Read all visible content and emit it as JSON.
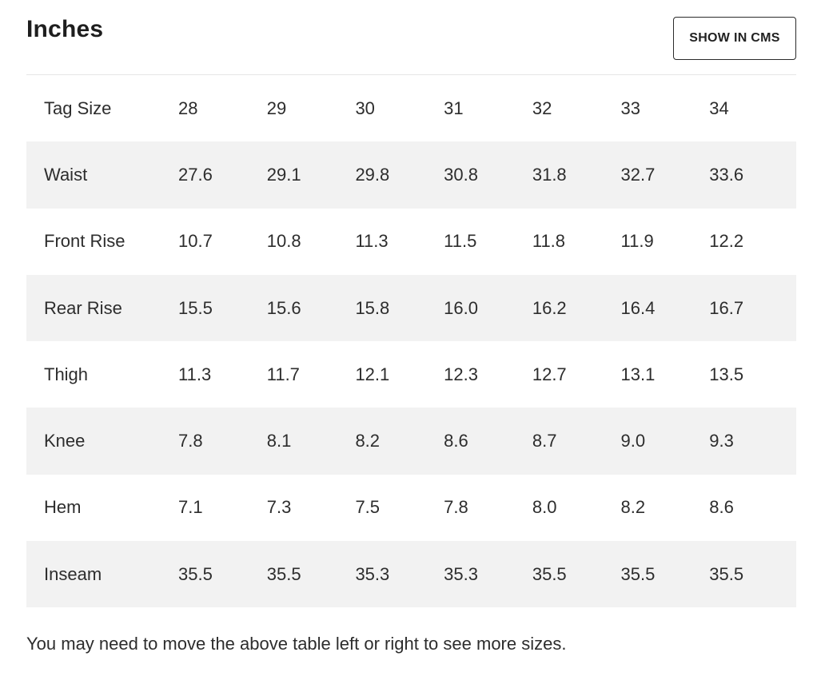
{
  "header": {
    "title": "Inches",
    "cms_button_label": "SHOW IN CMS"
  },
  "table": {
    "rows": [
      {
        "label": "Tag Size",
        "values": [
          "28",
          "29",
          "30",
          "31",
          "32",
          "33",
          "34"
        ]
      },
      {
        "label": "Waist",
        "values": [
          "27.6",
          "29.1",
          "29.8",
          "30.8",
          "31.8",
          "32.7",
          "33.6"
        ]
      },
      {
        "label": "Front Rise",
        "values": [
          "10.7",
          "10.8",
          "11.3",
          "11.5",
          "11.8",
          "11.9",
          "12.2"
        ]
      },
      {
        "label": "Rear Rise",
        "values": [
          "15.5",
          "15.6",
          "15.8",
          "16.0",
          "16.2",
          "16.4",
          "16.7"
        ]
      },
      {
        "label": "Thigh",
        "values": [
          "11.3",
          "11.7",
          "12.1",
          "12.3",
          "12.7",
          "13.1",
          "13.5"
        ]
      },
      {
        "label": "Knee",
        "values": [
          "7.8",
          "8.1",
          "8.2",
          "8.6",
          "8.7",
          "9.0",
          "9.3"
        ]
      },
      {
        "label": "Hem",
        "values": [
          "7.1",
          "7.3",
          "7.5",
          "7.8",
          "8.0",
          "8.2",
          "8.6"
        ]
      },
      {
        "label": "Inseam",
        "values": [
          "35.5",
          "35.5",
          "35.3",
          "35.3",
          "35.5",
          "35.5",
          "35.5"
        ]
      }
    ]
  },
  "footer": {
    "note": "You may need to move the above table left or right to see more sizes."
  },
  "colors": {
    "shaded_row": "#f2f2f2",
    "text": "#2d2d2d",
    "button_border": "#2b2b2b"
  }
}
